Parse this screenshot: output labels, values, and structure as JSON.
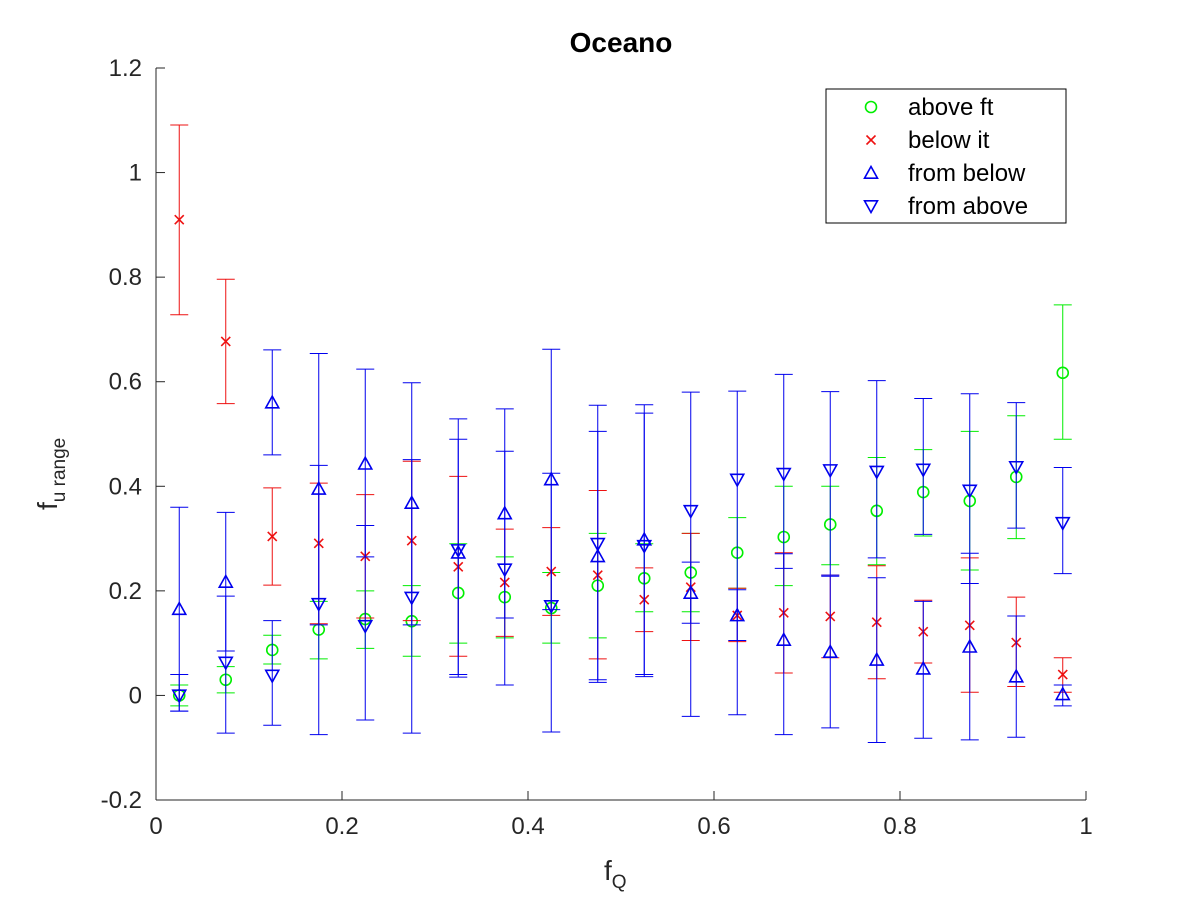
{
  "chart_data": {
    "type": "scatter",
    "title": "Oceano",
    "xlabel": {
      "main": "f",
      "sub": "Q"
    },
    "ylabel": {
      "main": "f",
      "sub": "u range"
    },
    "xlim": [
      0,
      1
    ],
    "ylim": [
      -0.2,
      1.2
    ],
    "x_ticks": [
      "0",
      "0.2",
      "0.4",
      "0.6",
      "0.8",
      "1"
    ],
    "y_ticks": [
      "-0.2",
      "0",
      "0.2",
      "0.4",
      "0.6",
      "0.8",
      "1",
      "1.2"
    ],
    "grid": false,
    "legend_position": "top-right",
    "x": [
      0.025,
      0.075,
      0.125,
      0.175,
      0.225,
      0.275,
      0.325,
      0.375,
      0.425,
      0.475,
      0.525,
      0.575,
      0.625,
      0.675,
      0.725,
      0.775,
      0.825,
      0.875,
      0.925,
      0.975
    ],
    "series": [
      {
        "name": "above ft",
        "marker": "circle",
        "color": "#00ee00",
        "y": [
          0.0,
          0.03,
          0.087,
          0.126,
          0.146,
          0.142,
          0.196,
          0.188,
          0.167,
          0.21,
          0.224,
          0.235,
          0.273,
          0.303,
          0.327,
          0.353,
          0.389,
          0.372,
          0.418,
          0.617
        ],
        "low": [
          -0.02,
          0.005,
          0.06,
          0.07,
          0.09,
          0.075,
          0.1,
          0.11,
          0.1,
          0.11,
          0.16,
          0.16,
          0.205,
          0.21,
          0.25,
          0.25,
          0.305,
          0.24,
          0.3,
          0.49
        ],
        "high": [
          0.02,
          0.055,
          0.115,
          0.18,
          0.2,
          0.21,
          0.29,
          0.265,
          0.235,
          0.31,
          0.29,
          0.31,
          0.34,
          0.4,
          0.4,
          0.455,
          0.47,
          0.505,
          0.535,
          0.747
        ]
      },
      {
        "name": "below it",
        "marker": "x",
        "color": "#ee1111",
        "y": [
          0.91,
          0.677,
          0.304,
          0.291,
          0.266,
          0.296,
          0.246,
          0.216,
          0.237,
          0.23,
          0.183,
          0.207,
          0.153,
          0.158,
          0.151,
          0.14,
          0.122,
          0.134,
          0.101,
          0.04
        ],
        "low": [
          0.728,
          0.558,
          0.211,
          0.137,
          0.148,
          0.143,
          0.075,
          0.113,
          0.153,
          0.07,
          0.122,
          0.105,
          0.103,
          0.043,
          0.072,
          0.032,
          0.062,
          0.006,
          0.017,
          0.006
        ],
        "high": [
          1.091,
          0.796,
          0.397,
          0.406,
          0.384,
          0.448,
          0.419,
          0.318,
          0.321,
          0.392,
          0.244,
          0.31,
          0.205,
          0.273,
          0.23,
          0.248,
          0.182,
          0.263,
          0.188,
          0.072
        ]
      },
      {
        "name": "from below",
        "marker": "triangle-up",
        "color": "#0000ee",
        "y": [
          0.165,
          0.217,
          0.56,
          0.395,
          0.443,
          0.368,
          0.273,
          0.348,
          0.413,
          0.266,
          0.298,
          0.196,
          0.153,
          0.106,
          0.083,
          0.068,
          0.051,
          0.093,
          0.036,
          0.002
        ],
        "low": [
          -0.03,
          0.085,
          0.46,
          0.135,
          0.265,
          0.135,
          0.035,
          0.148,
          0.164,
          0.025,
          0.04,
          0.138,
          0.105,
          -0.075,
          -0.062,
          -0.09,
          -0.082,
          -0.085,
          -0.08,
          -0.02
        ],
        "high": [
          0.36,
          0.35,
          0.661,
          0.654,
          0.624,
          0.598,
          0.529,
          0.548,
          0.662,
          0.505,
          0.556,
          0.255,
          0.202,
          0.271,
          0.228,
          0.225,
          0.18,
          0.272,
          0.152,
          0.02
        ]
      },
      {
        "name": "from above",
        "marker": "triangle-down",
        "color": "#0000ee",
        "y": [
          0.0,
          0.063,
          0.038,
          0.175,
          0.133,
          0.187,
          0.278,
          0.241,
          0.171,
          0.29,
          0.286,
          0.353,
          0.413,
          0.424,
          0.431,
          0.428,
          0.432,
          0.392,
          0.437,
          0.33
        ],
        "low": [
          -0.03,
          -0.072,
          -0.057,
          -0.075,
          -0.047,
          -0.072,
          0.04,
          0.02,
          -0.07,
          0.03,
          0.036,
          -0.04,
          -0.037,
          0.243,
          0.23,
          0.263,
          0.308,
          0.214,
          0.32,
          0.233
        ],
        "high": [
          0.04,
          0.19,
          0.143,
          0.44,
          0.325,
          0.451,
          0.49,
          0.467,
          0.425,
          0.555,
          0.54,
          0.58,
          0.582,
          0.614,
          0.581,
          0.602,
          0.568,
          0.577,
          0.56,
          0.436
        ]
      }
    ]
  }
}
